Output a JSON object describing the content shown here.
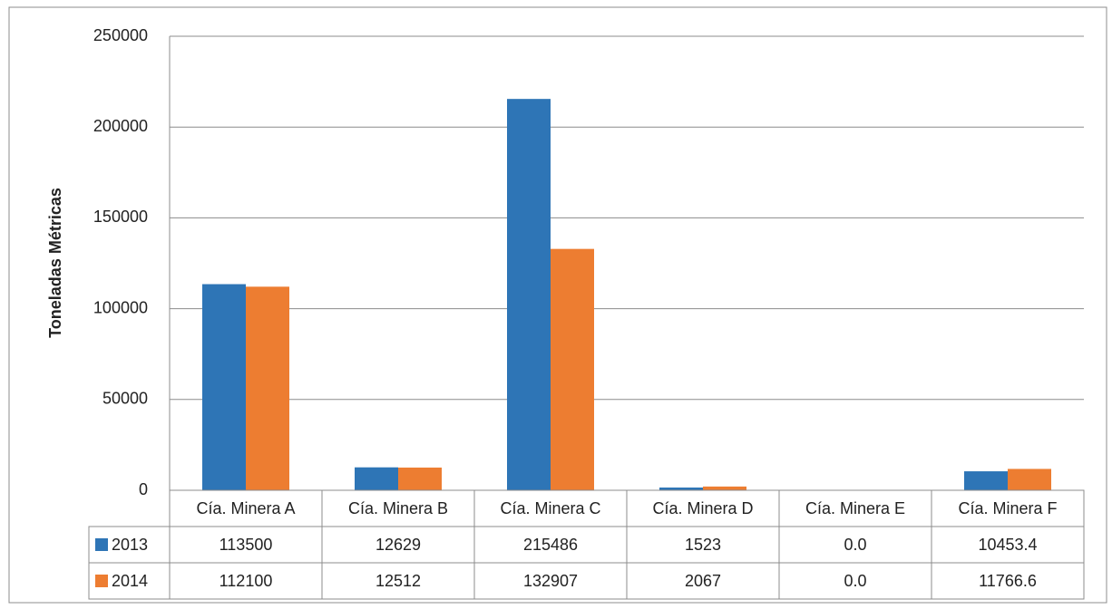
{
  "chart_data": {
    "type": "bar",
    "y_label": "Toneladas Métricas",
    "categories": [
      "Cía. Minera A",
      "Cía. Minera B",
      "Cía. Minera C",
      "Cía. Minera D",
      "Cía. Minera E",
      "Cía. Minera F"
    ],
    "series": [
      {
        "name": "2013",
        "color": "#2e75b6",
        "values": [
          113500,
          12629,
          215486,
          1523,
          0,
          10453.4
        ],
        "value_labels": [
          "113500",
          "12629",
          "215486",
          "1523",
          "0.0",
          "10453.4"
        ]
      },
      {
        "name": "2014",
        "color": "#ed7d31",
        "values": [
          112100,
          12512,
          132907,
          2067,
          0,
          11766.6
        ],
        "value_labels": [
          "112100",
          "12512",
          "132907",
          "2067",
          "0.0",
          "11766.6"
        ]
      }
    ],
    "ylim": [
      0,
      250000
    ],
    "yticks": [
      0,
      50000,
      100000,
      150000,
      200000,
      250000
    ],
    "grid": true
  }
}
